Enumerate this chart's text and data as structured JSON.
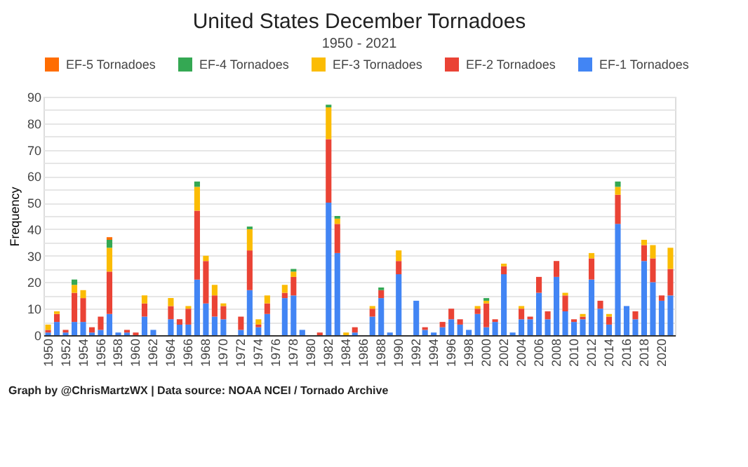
{
  "chart_data": {
    "type": "bar",
    "title": "United States December Tornadoes",
    "subtitle": "1950 - 2021",
    "ylabel": "Frequency",
    "categories": [
      "1950",
      null,
      "1952",
      null,
      "1954",
      null,
      "1956",
      null,
      "1958",
      null,
      "1960",
      null,
      "1962",
      null,
      "1964",
      null,
      "1966",
      null,
      "1968",
      null,
      "1970",
      null,
      "1972",
      null,
      "1974",
      null,
      "1976",
      null,
      "1978",
      null,
      "1980",
      null,
      "1982",
      null,
      "1984",
      null,
      "1986",
      null,
      "1988",
      null,
      "1990",
      null,
      "1992",
      null,
      "1994",
      null,
      "1996",
      null,
      "1998",
      null,
      "2000",
      null,
      "2002",
      null,
      "2004",
      null,
      "2006",
      null,
      "2008",
      null,
      "2010",
      null,
      "2012",
      null,
      "2014",
      null,
      "2016",
      null,
      "2018",
      null,
      "2020",
      null
    ],
    "stacked": true,
    "series": [
      {
        "name": "EF-1 Tornadoes",
        "color": "#4285f4",
        "values": [
          1,
          5,
          1,
          5,
          5,
          1,
          2,
          8,
          1,
          1,
          0,
          7,
          2,
          0,
          6,
          4,
          4,
          21,
          12,
          7,
          6,
          0,
          2,
          17,
          3,
          8,
          0,
          14,
          15,
          2,
          0,
          0,
          50,
          31,
          0,
          1,
          0,
          7,
          14,
          1,
          23,
          0,
          13,
          2,
          1,
          3,
          6,
          4,
          2,
          8,
          3,
          5,
          23,
          1,
          6,
          6,
          16,
          6,
          22,
          9,
          5,
          6,
          21,
          10,
          4,
          42,
          11,
          6,
          28,
          20,
          13,
          15
        ]
      },
      {
        "name": "EF-2 Tornadoes",
        "color": "#ea4335",
        "values": [
          1,
          3,
          1,
          11,
          9,
          2,
          5,
          16,
          0,
          1,
          1,
          5,
          0,
          0,
          5,
          2,
          6,
          26,
          16,
          8,
          5,
          0,
          5,
          15,
          1,
          4,
          0,
          2,
          7,
          0,
          0,
          1,
          24,
          11,
          0,
          2,
          0,
          3,
          3,
          0,
          5,
          0,
          0,
          1,
          0,
          2,
          4,
          2,
          0,
          2,
          9,
          1,
          3,
          0,
          4,
          1,
          6,
          3,
          6,
          6,
          1,
          1,
          8,
          3,
          3,
          11,
          0,
          3,
          6,
          9,
          2,
          10
        ]
      },
      {
        "name": "EF-3 Tornadoes",
        "color": "#fbbc04",
        "values": [
          2,
          1,
          0,
          3,
          3,
          0,
          0,
          9,
          0,
          0,
          0,
          3,
          0,
          0,
          3,
          0,
          1,
          9,
          2,
          4,
          1,
          0,
          0,
          8,
          2,
          3,
          0,
          3,
          2,
          0,
          0,
          0,
          12,
          2,
          1,
          0,
          0,
          1,
          0,
          0,
          4,
          0,
          0,
          0,
          0,
          0,
          0,
          0,
          0,
          1,
          1,
          0,
          1,
          0,
          1,
          0,
          0,
          0,
          0,
          1,
          0,
          1,
          2,
          0,
          1,
          3,
          0,
          0,
          2,
          5,
          0,
          8
        ]
      },
      {
        "name": "EF-4 Tornadoes",
        "color": "#34a853",
        "values": [
          0,
          0,
          0,
          2,
          0,
          0,
          0,
          3,
          0,
          0,
          0,
          0,
          0,
          0,
          0,
          0,
          0,
          2,
          0,
          0,
          0,
          0,
          0,
          1,
          0,
          0,
          0,
          0,
          1,
          0,
          0,
          0,
          1,
          1,
          0,
          0,
          0,
          0,
          1,
          0,
          0,
          0,
          0,
          0,
          0,
          0,
          0,
          0,
          0,
          0,
          1,
          0,
          0,
          0,
          0,
          0,
          0,
          0,
          0,
          0,
          0,
          0,
          0,
          0,
          0,
          2,
          0,
          0,
          0,
          0,
          0,
          0
        ]
      },
      {
        "name": "EF-5 Tornadoes",
        "color": "#ff6d01",
        "values": [
          0,
          0,
          0,
          0,
          0,
          0,
          0,
          1,
          0,
          0,
          0,
          0,
          0,
          0,
          0,
          0,
          0,
          0,
          0,
          0,
          0,
          0,
          0,
          0,
          0,
          0,
          0,
          0,
          0,
          0,
          0,
          0,
          0,
          0,
          0,
          0,
          0,
          0,
          0,
          0,
          0,
          0,
          0,
          0,
          0,
          0,
          0,
          0,
          0,
          0,
          0,
          0,
          0,
          0,
          0,
          0,
          0,
          0,
          0,
          0,
          0,
          0,
          0,
          0,
          0,
          0,
          0,
          0,
          0,
          0,
          0,
          0
        ]
      }
    ],
    "ylim": [
      0,
      90
    ],
    "yticks": [
      0,
      {
        "value": 5,
        "label": null
      },
      10,
      {
        "value": 15,
        "label": null
      },
      20,
      {
        "value": 25,
        "label": null
      },
      30,
      {
        "value": 35,
        "label": null
      },
      40,
      {
        "value": 45,
        "label": null
      },
      50,
      {
        "value": 55,
        "label": null
      },
      60,
      {
        "value": 65,
        "label": null
      },
      70,
      {
        "value": 75,
        "label": null
      },
      80,
      {
        "value": 85,
        "label": null
      },
      90
    ],
    "grid": "y",
    "legend": "top",
    "annotations": [
      "Graph by @ChrisMartzWX | Data source: NOAA NCEI / Tornado Archive"
    ]
  }
}
